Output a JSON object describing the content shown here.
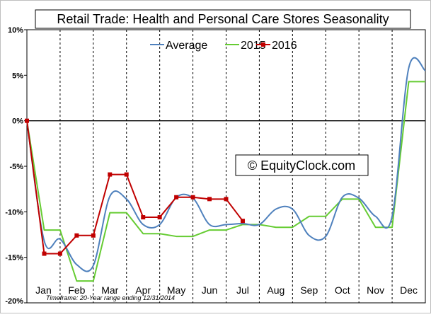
{
  "chart_data": {
    "type": "line",
    "title": "Retail Trade: Health and Personal Care Stores Seasonality",
    "watermark": "© EquityClock.com",
    "footnote": "Timeframe: 20-Year range ending 12/31/2014",
    "ylim": [
      -20,
      10
    ],
    "y_ticks": [
      10,
      5,
      0,
      -5,
      -10,
      -15,
      -20
    ],
    "y_tick_labels": [
      "10%",
      "5%",
      "0%",
      "-5%",
      "-10%",
      "-15%",
      "-20%"
    ],
    "months": [
      "Jan",
      "Feb",
      "Mar",
      "Apr",
      "May",
      "Jun",
      "Jul",
      "Aug",
      "Sep",
      "Oct",
      "Nov",
      "Dec"
    ],
    "x_unit": "fraction of year",
    "xlim": [
      0,
      1
    ],
    "grid": "vertical dashed lines at month boundaries",
    "legend_position": "top-center",
    "series": [
      {
        "name": "Average",
        "color": "#4f81bd",
        "smooth": true,
        "markers": false,
        "x": [
          0,
          0.0435,
          0.0833,
          0.125,
          0.1667,
          0.2083,
          0.25,
          0.2917,
          0.3333,
          0.375,
          0.4167,
          0.4583,
          0.5,
          0.5417,
          0.5833,
          0.625,
          0.6667,
          0.7083,
          0.75,
          0.7917,
          0.8333,
          0.875,
          0.9167,
          0.9583,
          1.0
        ],
        "values": [
          0,
          -13.2,
          -13.0,
          -15.8,
          -15.9,
          -8.3,
          -8.6,
          -11.4,
          -11.4,
          -8.4,
          -8.5,
          -11.4,
          -11.4,
          -11.3,
          -11.4,
          -9.7,
          -9.7,
          -12.6,
          -12.7,
          -8.4,
          -8.5,
          -10.5,
          -10.5,
          5.8,
          5.5
        ]
      },
      {
        "name": "2015",
        "color": "#66cc33",
        "smooth": false,
        "markers": false,
        "x": [
          0,
          0.0435,
          0.0833,
          0.125,
          0.1667,
          0.2083,
          0.25,
          0.2917,
          0.3333,
          0.375,
          0.4167,
          0.4583,
          0.5,
          0.5417,
          0.5833,
          0.625,
          0.6667,
          0.7083,
          0.75,
          0.7917,
          0.8333,
          0.875,
          0.9167,
          0.9583,
          1.0
        ],
        "values": [
          0,
          -12.0,
          -12.0,
          -17.6,
          -17.6,
          -10.1,
          -10.1,
          -12.4,
          -12.4,
          -12.7,
          -12.7,
          -12.0,
          -12.0,
          -11.4,
          -11.4,
          -11.7,
          -11.7,
          -10.5,
          -10.5,
          -8.6,
          -8.6,
          -11.7,
          -11.7,
          4.3,
          4.3
        ]
      },
      {
        "name": "2016",
        "color": "#c00000",
        "smooth": false,
        "markers": true,
        "x": [
          0,
          0.0435,
          0.0833,
          0.125,
          0.1667,
          0.2083,
          0.25,
          0.2917,
          0.3333,
          0.375,
          0.4167,
          0.4583,
          0.5,
          0.5417
        ],
        "values": [
          0,
          -14.6,
          -14.6,
          -12.6,
          -12.6,
          -5.9,
          -5.9,
          -10.6,
          -10.6,
          -8.4,
          -8.4,
          -8.6,
          -8.6,
          -11.0
        ]
      }
    ]
  }
}
